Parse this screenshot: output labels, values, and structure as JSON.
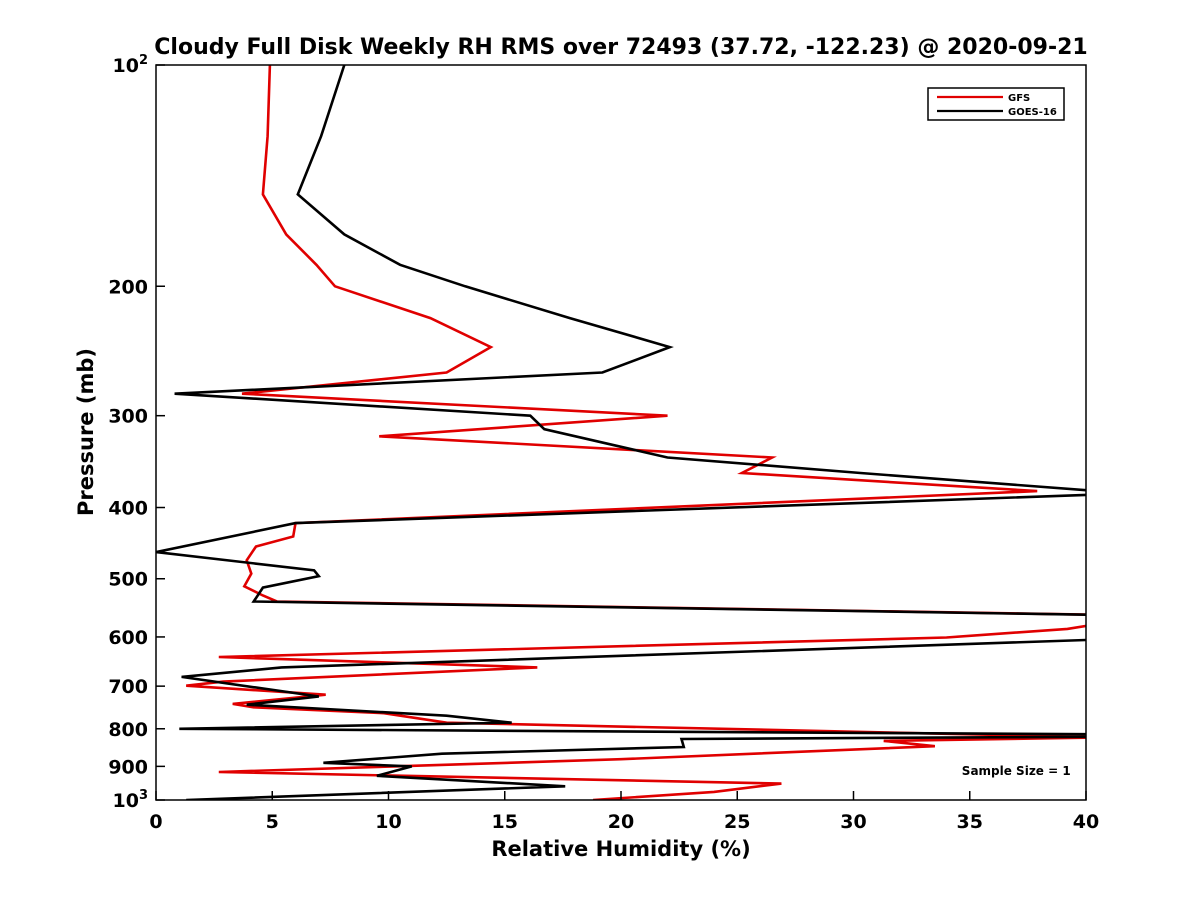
{
  "chart_data": {
    "type": "line",
    "title": "Cloudy Full Disk Weekly RH RMS over 72493 (37.72, -122.23) @ 2020-09-21",
    "xlabel": "Relative Humidity (%)",
    "ylabel": "Pressure (mb)",
    "xlim": [
      0,
      40
    ],
    "ylim": [
      100,
      1000
    ],
    "y_scale": "log",
    "y_reversed": true,
    "grid": false,
    "legend_position": "top-right",
    "x_ticks": [
      {
        "value": 0,
        "label": "0"
      },
      {
        "value": 5,
        "label": "5"
      },
      {
        "value": 10,
        "label": "10"
      },
      {
        "value": 15,
        "label": "15"
      },
      {
        "value": 20,
        "label": "20"
      },
      {
        "value": 25,
        "label": "25"
      },
      {
        "value": 30,
        "label": "30"
      },
      {
        "value": 35,
        "label": "35"
      },
      {
        "value": 40,
        "label": "40"
      }
    ],
    "y_ticks": [
      {
        "value": 100,
        "label": "10",
        "exp": "2"
      },
      {
        "value": 200,
        "label": "200"
      },
      {
        "value": 300,
        "label": "300"
      },
      {
        "value": 400,
        "label": "400"
      },
      {
        "value": 500,
        "label": "500"
      },
      {
        "value": 600,
        "label": "600"
      },
      {
        "value": 700,
        "label": "700"
      },
      {
        "value": 800,
        "label": "800"
      },
      {
        "value": 900,
        "label": "900"
      },
      {
        "value": 1000,
        "label": "10",
        "exp": "3"
      }
    ],
    "annotations": [
      {
        "text": "Sample Size = 1",
        "x": 37,
        "y": 925
      }
    ],
    "series": [
      {
        "name": "GFS",
        "color": "#e00000",
        "points": [
          [
            4.9,
            100
          ],
          [
            4.8,
            125
          ],
          [
            4.6,
            150
          ],
          [
            5.6,
            170
          ],
          [
            6.9,
            187
          ],
          [
            7.7,
            200
          ],
          [
            11.8,
            221
          ],
          [
            14.4,
            242
          ],
          [
            12.5,
            262
          ],
          [
            3.7,
            280
          ],
          [
            22.0,
            300
          ],
          [
            9.6,
            320
          ],
          [
            26.5,
            342
          ],
          [
            25.2,
            359
          ],
          [
            37.9,
            380
          ],
          [
            6.0,
            420
          ],
          [
            5.9,
            438
          ],
          [
            4.3,
            452
          ],
          [
            3.9,
            472
          ],
          [
            4.1,
            492
          ],
          [
            3.8,
            512
          ],
          [
            4.6,
            527
          ],
          [
            5.2,
            537
          ],
          [
            41.0,
            560
          ],
          [
            41.0,
            573
          ],
          [
            39.2,
            585
          ],
          [
            34.0,
            601
          ],
          [
            2.7,
            639
          ],
          [
            16.4,
            660
          ],
          [
            2.9,
            690
          ],
          [
            1.3,
            699
          ],
          [
            7.3,
            719
          ],
          [
            3.3,
            740
          ],
          [
            4.2,
            748
          ],
          [
            9.8,
            762
          ],
          [
            12.5,
            785
          ],
          [
            41.0,
            822
          ],
          [
            31.3,
            831
          ],
          [
            33.5,
            845
          ],
          [
            20.0,
            880
          ],
          [
            2.7,
            916
          ],
          [
            26.9,
            950
          ],
          [
            24.0,
            975
          ],
          [
            18.8,
            1000
          ]
        ]
      },
      {
        "name": "GOES-16",
        "color": "#000000",
        "points": [
          [
            8.1,
            100
          ],
          [
            7.1,
            125
          ],
          [
            6.1,
            150
          ],
          [
            8.1,
            170
          ],
          [
            10.5,
            187
          ],
          [
            13.3,
            200
          ],
          [
            17.8,
            221
          ],
          [
            22.1,
            242
          ],
          [
            19.2,
            262
          ],
          [
            0.8,
            280
          ],
          [
            16.1,
            300
          ],
          [
            16.7,
            313
          ],
          [
            22.0,
            342
          ],
          [
            30.3,
            359
          ],
          [
            40.5,
            380
          ],
          [
            40.5,
            384
          ],
          [
            6.0,
            420
          ],
          [
            0.0,
            460
          ],
          [
            6.8,
            487
          ],
          [
            7.0,
            496
          ],
          [
            4.6,
            514
          ],
          [
            4.2,
            537
          ],
          [
            40.5,
            560
          ],
          [
            40.5,
            605
          ],
          [
            5.4,
            660
          ],
          [
            1.1,
            680
          ],
          [
            7.0,
            723
          ],
          [
            3.9,
            742
          ],
          [
            12.5,
            768
          ],
          [
            15.3,
            785
          ],
          [
            1.0,
            800
          ],
          [
            40.5,
            814
          ],
          [
            40.5,
            820
          ],
          [
            22.6,
            826
          ],
          [
            22.7,
            847
          ],
          [
            12.3,
            865
          ],
          [
            7.2,
            890
          ],
          [
            11.0,
            900
          ],
          [
            9.5,
            927
          ],
          [
            17.6,
            958
          ],
          [
            1.3,
            1000
          ]
        ]
      }
    ]
  }
}
